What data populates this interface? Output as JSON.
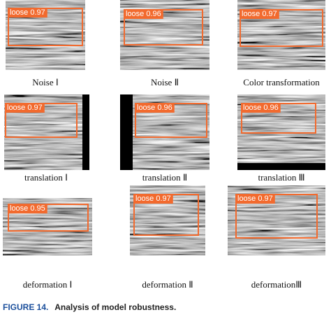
{
  "figure": {
    "panels": [
      {
        "detection": "loose 0.97",
        "caption": "Noise Ⅰ"
      },
      {
        "detection": "loose 0.96",
        "caption": "Noise Ⅱ"
      },
      {
        "detection": "loose 0.97",
        "caption": "Color transformation"
      },
      {
        "detection": "loose 0.97",
        "caption": "translation Ⅰ"
      },
      {
        "detection": "loose 0.96",
        "caption": "translation Ⅱ"
      },
      {
        "detection": "loose 0.96",
        "caption": "translation Ⅲ"
      },
      {
        "detection": "loose 0.95",
        "caption": "deformation Ⅰ"
      },
      {
        "detection": "loose 0.97",
        "caption": "deformation Ⅱ"
      },
      {
        "detection": "loose 0.97",
        "caption": "deformationⅢ"
      }
    ],
    "caption": {
      "label": "FIGURE 14.",
      "text": "Analysis of model robustness."
    }
  }
}
